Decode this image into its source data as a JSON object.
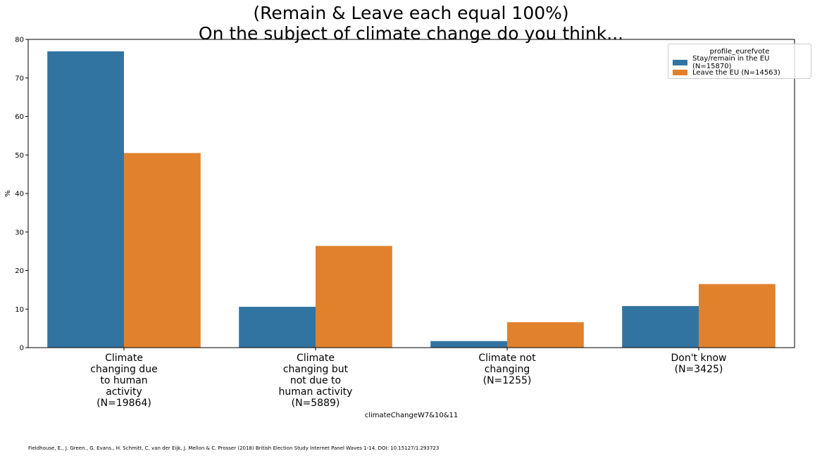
{
  "chart_data": {
    "type": "bar",
    "title_lines": [
      "(Remain & Leave each equal 100%)",
      "On the subject of climate change do you think..."
    ],
    "xlabel": "climateChangeW7&10&11",
    "ylabel": "%",
    "ylim": [
      0,
      80
    ],
    "yticks": [
      0,
      10,
      20,
      30,
      40,
      50,
      60,
      70,
      80
    ],
    "categories": [
      [
        "Climate",
        "changing due",
        "to human",
        "activity",
        "(N=19864)"
      ],
      [
        "Climate",
        "changing but",
        "not due to",
        "human activity",
        "(N=5889)"
      ],
      [
        "Climate not",
        "changing",
        "(N=1255)"
      ],
      [
        "Don't know",
        "(N=3425)"
      ]
    ],
    "series": [
      {
        "name": "Stay/remain in the EU (N=15870)",
        "color": "#3274a1",
        "values": [
          76.9,
          10.6,
          1.7,
          10.8
        ]
      },
      {
        "name": "Leave the EU (N=14563)",
        "color": "#e1812c",
        "values": [
          50.5,
          26.4,
          6.6,
          16.5
        ]
      }
    ],
    "legend": {
      "title": "profile_eurefvote",
      "placement": "top-right"
    },
    "grid": false
  },
  "citation": "Fieldhouse, E., J. Green., G. Evans., H. Schmitt, C. van der Eijk, J. Mellon & C. Prosser (2018) British Election Study Internet Panel Waves 1-14. DOI: 10.15127/1.293723"
}
